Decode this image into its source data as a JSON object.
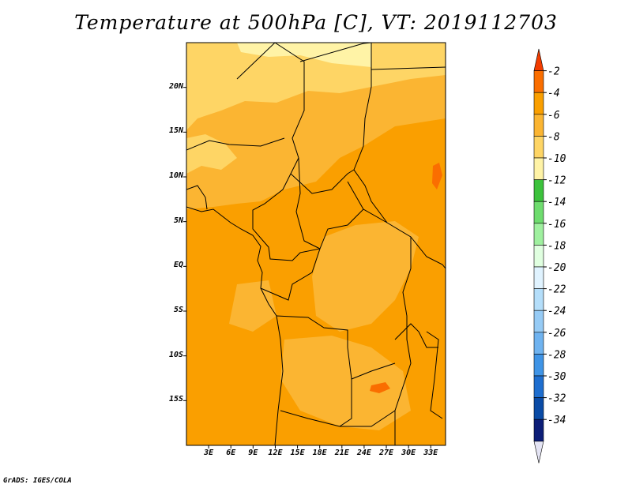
{
  "title": "Temperature at 500hPa [C], VT: 2019112703",
  "credit": "GrADS: IGES/COLA",
  "map": {
    "y_ticks": [
      "20N",
      "15N",
      "10N",
      "5N",
      "EQ",
      "5S",
      "10S",
      "15S"
    ],
    "x_ticks": [
      "3E",
      "6E",
      "9E",
      "12E",
      "15E",
      "18E",
      "21E",
      "24E",
      "27E",
      "30E",
      "33E"
    ],
    "lon_range": [
      0,
      35
    ],
    "lat_range": [
      -20,
      25
    ]
  },
  "colorbar": {
    "labels": [
      "-2",
      "-4",
      "-6",
      "-8",
      "-10",
      "-12",
      "-14",
      "-16",
      "-18",
      "-20",
      "-22",
      "-24",
      "-26",
      "-28",
      "-30",
      "-32",
      "-34"
    ],
    "colors": [
      "#f23c00",
      "#fa6e00",
      "#fa9f00",
      "#fbb532",
      "#fed565",
      "#fff3a6",
      "#3cc23c",
      "#6edc6e",
      "#9ff09f",
      "#e0ffe0",
      "#e0f3ff",
      "#b4defa",
      "#96cbf5",
      "#6fb3f0",
      "#3f94e6",
      "#1e6ecf",
      "#0a4ba6",
      "#0c1e78",
      "#e4e4f4"
    ]
  }
}
